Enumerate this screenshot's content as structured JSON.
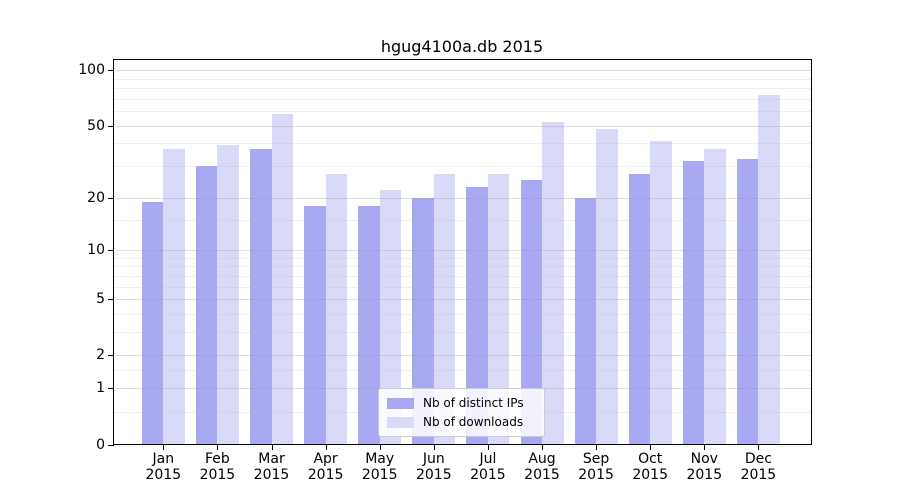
{
  "chart_data": {
    "type": "bar",
    "title": "hgug4100a.db 2015",
    "categories": [
      "Jan",
      "Feb",
      "Mar",
      "Apr",
      "May",
      "Jun",
      "Jul",
      "Aug",
      "Sep",
      "Oct",
      "Nov",
      "Dec"
    ],
    "x_year_label": "2015",
    "series": [
      {
        "name": "Nb of distinct IPs",
        "color": "#a9a9f3",
        "values": [
          19,
          30,
          37,
          18,
          18,
          20,
          23,
          25,
          20,
          27,
          32,
          33
        ]
      },
      {
        "name": "Nb of downloads",
        "color": "#d9d9f8",
        "values": [
          37,
          39,
          58,
          27,
          22,
          27,
          27,
          52,
          48,
          41,
          37,
          73
        ]
      }
    ],
    "yscale": "log1p",
    "ylim": [
      0,
      114
    ],
    "yticks": [
      0,
      1,
      2,
      5,
      10,
      20,
      50,
      100
    ],
    "yticks_minor": [
      0.5,
      1.5,
      3,
      4,
      6,
      7,
      8,
      9,
      15,
      30,
      40,
      60,
      70,
      80,
      90
    ],
    "grid": true,
    "legend_position": "lower center",
    "xlabel": "",
    "ylabel": ""
  },
  "colors": {
    "background": "#ffffff",
    "axis": "#000000",
    "grid_major": "rgba(150,150,150,0.30)",
    "grid_minor": "rgba(180,180,180,0.22)",
    "legend_border": "#cccccc"
  }
}
